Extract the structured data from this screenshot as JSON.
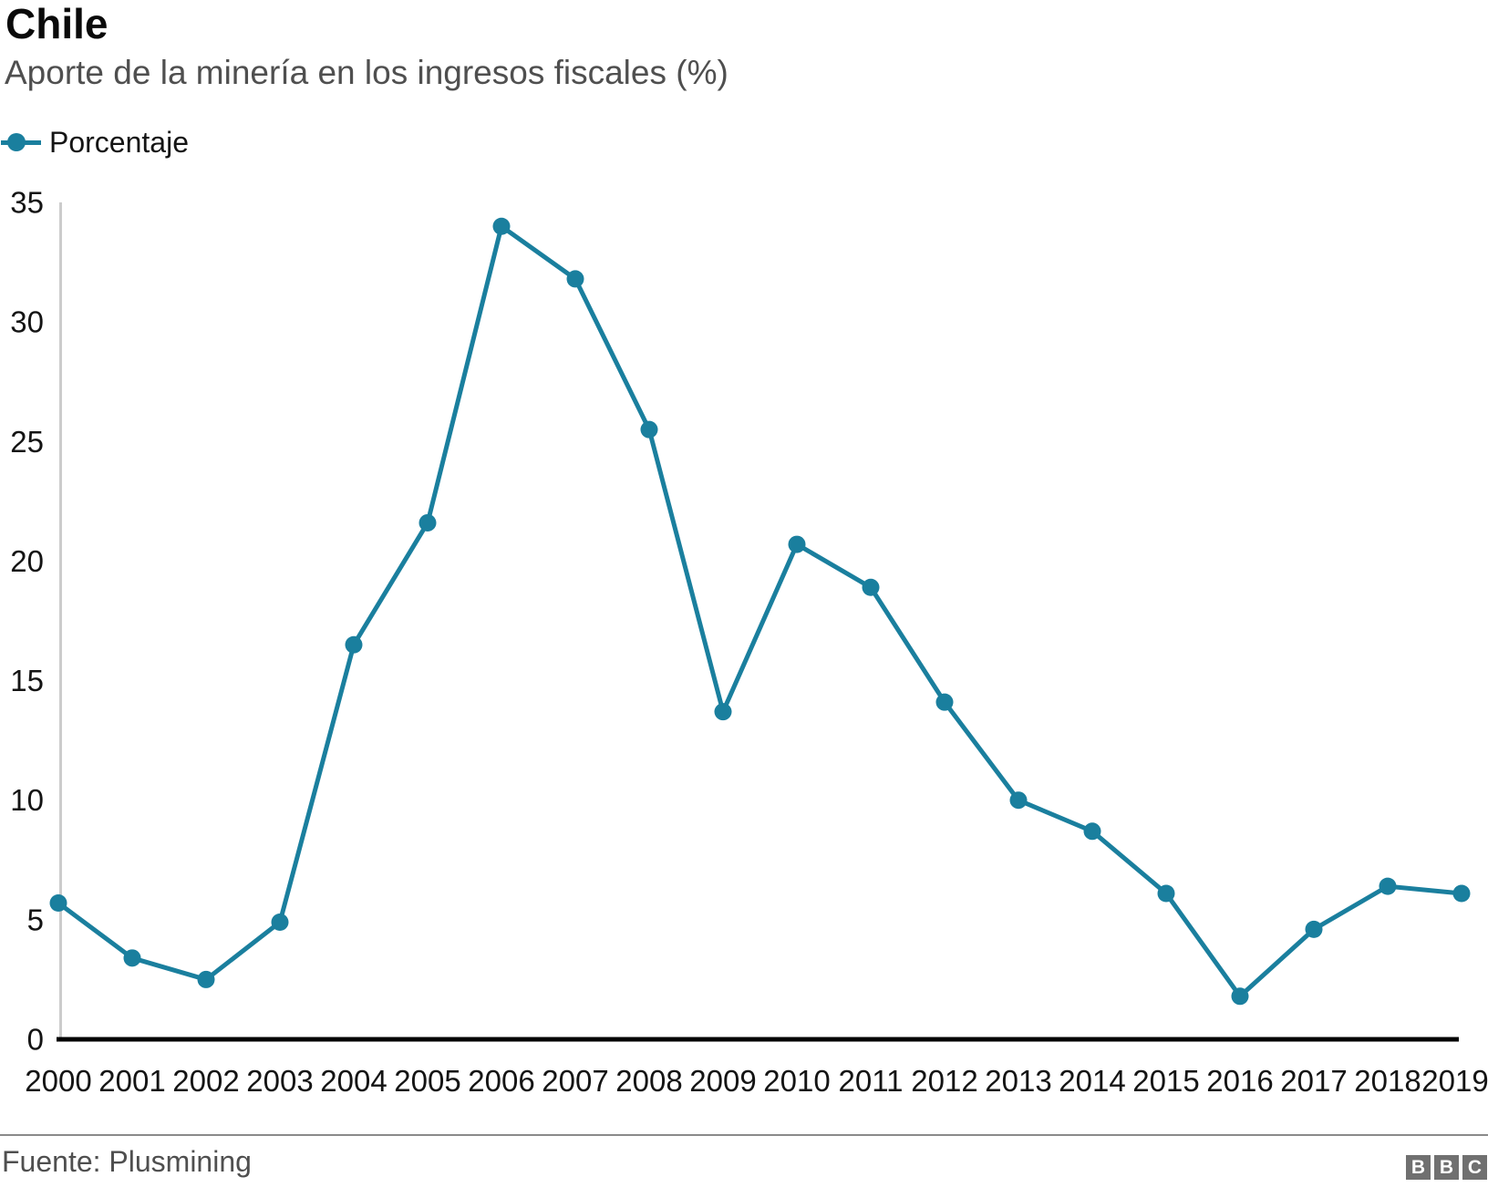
{
  "header": {
    "title": "Chile",
    "subtitle": "Aporte de la minería en los ingresos fiscales (%)"
  },
  "legend": {
    "label": "Porcentaje",
    "marker_icon": "line-dot-icon"
  },
  "chart_data": {
    "type": "line",
    "title": "Chile",
    "subtitle": "Aporte de la minería en los ingresos fiscales (%)",
    "xlabel": "",
    "ylabel": "",
    "categories": [
      "2000",
      "2001",
      "2002",
      "2003",
      "2004",
      "2005",
      "2006",
      "2007",
      "2008",
      "2009",
      "2010",
      "2011",
      "2012",
      "2013",
      "2014",
      "2015",
      "2016",
      "2017",
      "2018",
      "2019"
    ],
    "series": [
      {
        "name": "Porcentaje",
        "color": "#1A7F9E",
        "values": [
          5.7,
          3.4,
          2.5,
          4.9,
          16.5,
          21.6,
          34.0,
          31.8,
          25.5,
          13.7,
          20.7,
          18.9,
          14.1,
          10.0,
          8.7,
          6.1,
          1.8,
          4.6,
          6.4,
          6.1
        ]
      }
    ],
    "ylim": [
      0,
      35
    ],
    "yticks": [
      0,
      5,
      10,
      15,
      20,
      25,
      30,
      35
    ],
    "grid": false,
    "legend_position": "top-left",
    "marker": "circle"
  },
  "colors": {
    "accent": "#1A7F9E",
    "text_dark": "#141414",
    "text_muted": "#4f4f4f",
    "axis_black": "#000000",
    "axis_gray": "#cccccc",
    "divider": "#8a8a8a",
    "logo_gray": "#707070"
  },
  "footer": {
    "source": "Fuente: Plusmining",
    "logo_letters": [
      "B",
      "B",
      "C"
    ]
  }
}
